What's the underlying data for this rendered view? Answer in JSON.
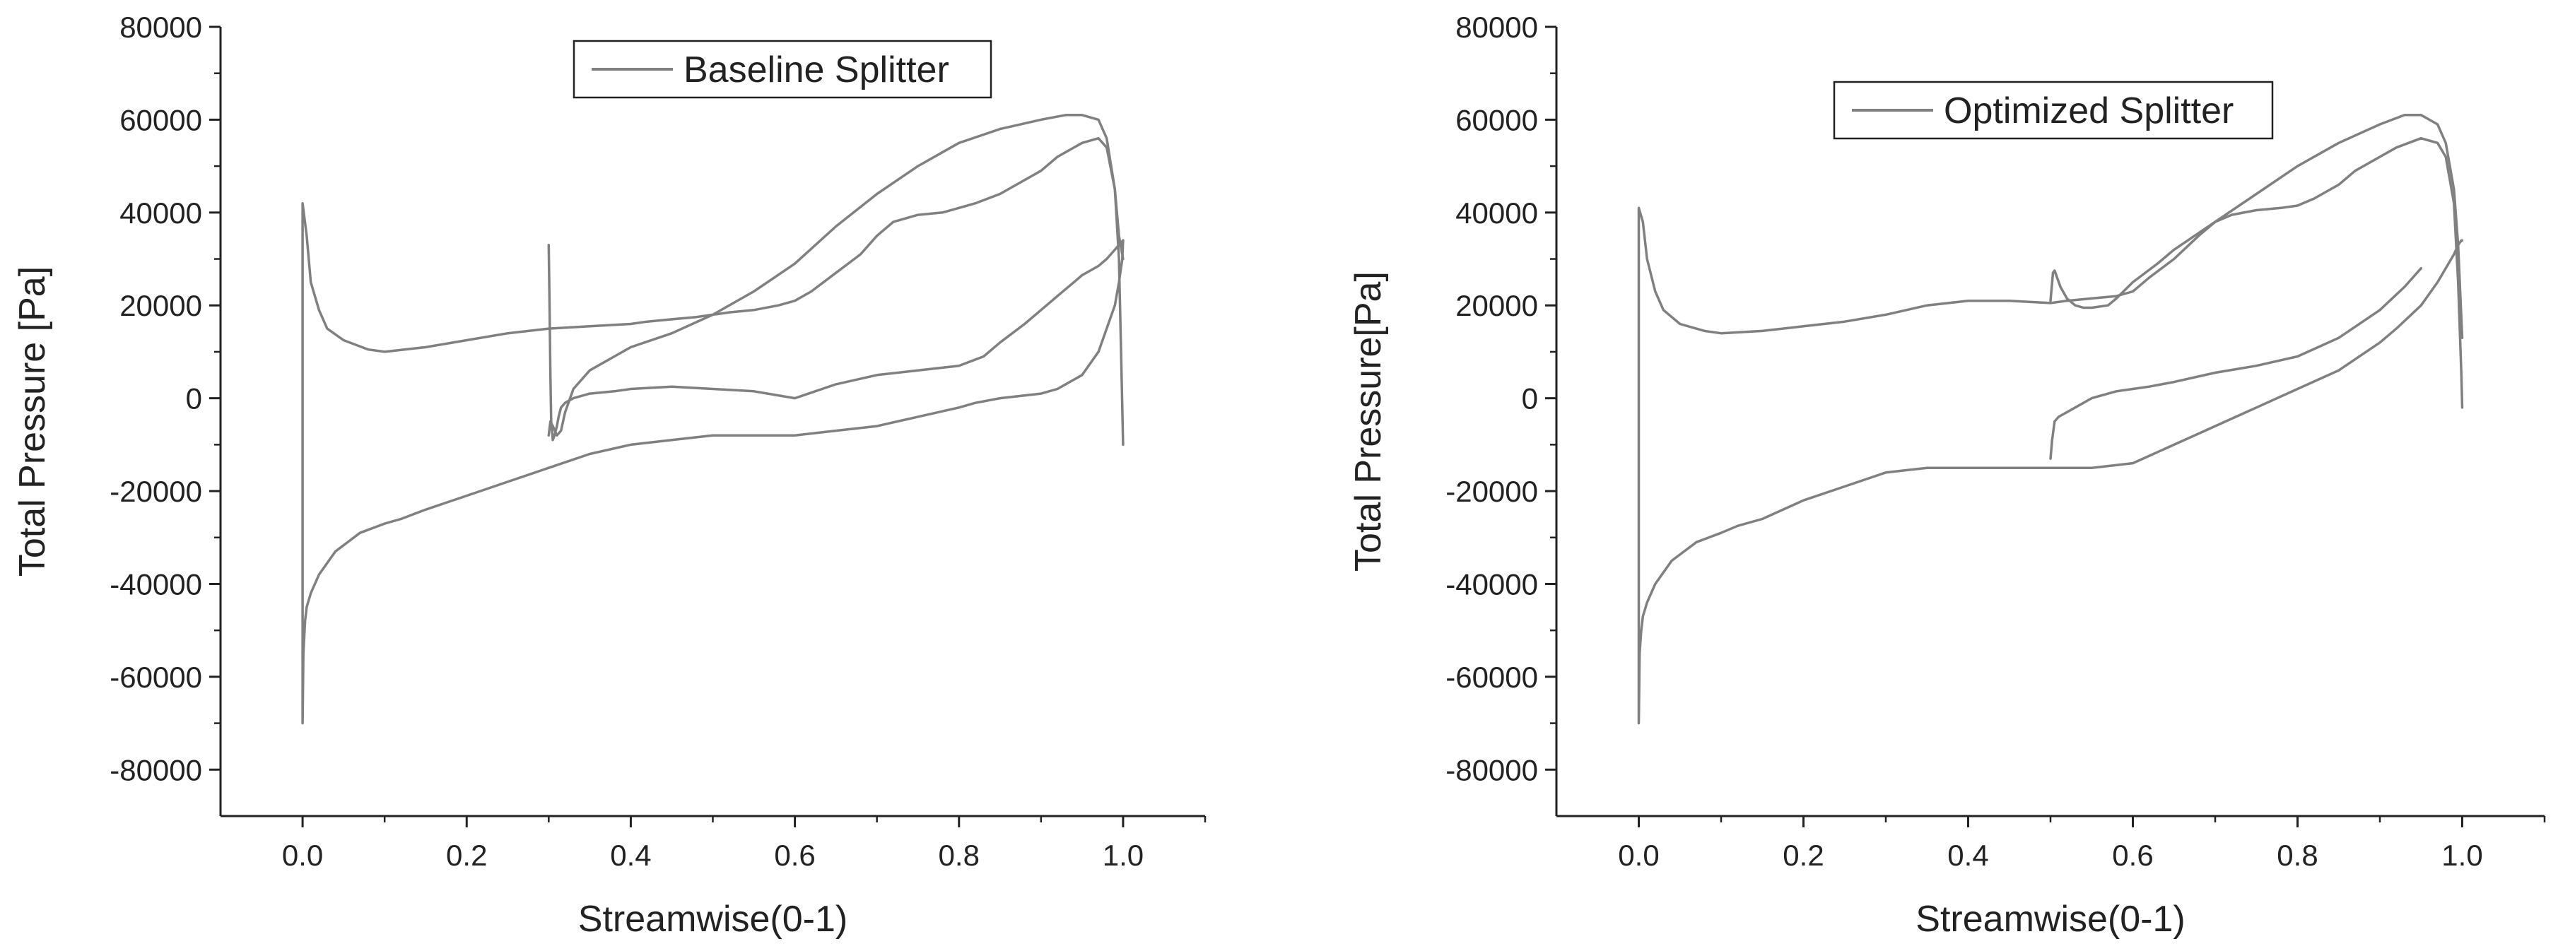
{
  "chart_data": [
    {
      "type": "line",
      "title": "",
      "xlabel": "Streamwise(0-1)",
      "ylabel": "Total Pressure [Pa]",
      "xlim": [
        -0.1,
        1.1
      ],
      "ylim": [
        -90000,
        80000
      ],
      "xticks": [
        0.0,
        0.2,
        0.4,
        0.6,
        0.8,
        1.0
      ],
      "xtick_labels": [
        "0.0",
        "0.2",
        "0.4",
        "0.6",
        "0.8",
        "1.0"
      ],
      "yticks": [
        -80000,
        -60000,
        -40000,
        -20000,
        0,
        20000,
        40000,
        60000,
        80000
      ],
      "ytick_labels": [
        "-80000",
        "-60000",
        "-40000",
        "-20000",
        "0",
        "20000",
        "40000",
        "60000",
        "80000"
      ],
      "grid": false,
      "legend_position": "top-center",
      "series_color": "#808080",
      "series": [
        {
          "name": "Baseline Splitter",
          "x": [
            1.0,
            0.999,
            0.995,
            0.99,
            0.98,
            0.97,
            0.95,
            0.92,
            0.9,
            0.87,
            0.85,
            0.82,
            0.8,
            0.78,
            0.75,
            0.72,
            0.7,
            0.68,
            0.65,
            0.62,
            0.6,
            0.58,
            0.55,
            0.52,
            0.5,
            0.48,
            0.45,
            0.42,
            0.4,
            0.35,
            0.3,
            0.25,
            0.2,
            0.15,
            0.1,
            0.08,
            0.05,
            0.03,
            0.02,
            0.01,
            0.005,
            0.0,
            0.0,
            0.001,
            0.003,
            0.005,
            0.01,
            0.02,
            0.04,
            0.07,
            0.1,
            0.12,
            0.15,
            0.2,
            0.25,
            0.3,
            0.35,
            0.4,
            0.45,
            0.5,
            0.55,
            0.6,
            0.65,
            0.7,
            0.75,
            0.8,
            0.82,
            0.85,
            0.9,
            0.92,
            0.95,
            0.97,
            0.98,
            0.99,
            0.995,
            0.999,
            1.0
          ],
          "y": [
            -10000,
            -2000,
            30000,
            45000,
            54000,
            56000,
            55000,
            52000,
            49000,
            46000,
            44000,
            42000,
            41000,
            40000,
            39500,
            38000,
            35000,
            31000,
            27000,
            23000,
            21000,
            20000,
            19000,
            18500,
            18000,
            17500,
            17000,
            16500,
            16000,
            15500,
            15000,
            14000,
            12500,
            11000,
            10000,
            10500,
            12500,
            15000,
            19000,
            25000,
            35000,
            42000,
            -70000,
            -55000,
            -48000,
            -45000,
            -42000,
            -38000,
            -33000,
            -29000,
            -27000,
            -26000,
            -24000,
            -21000,
            -18000,
            -15000,
            -12000,
            -10000,
            -9000,
            -8000,
            -8000,
            -8000,
            -7000,
            -6000,
            -4000,
            -2000,
            -1000,
            0,
            1000,
            2000,
            5000,
            10000,
            15000,
            20000,
            25000,
            30000,
            34000
          ]
        },
        {
          "name": "Baseline Splitter",
          "x": [
            0.3,
            0.301,
            0.302,
            0.303,
            0.305,
            0.307,
            0.31,
            0.312,
            0.315,
            0.32,
            0.33,
            0.35,
            0.38,
            0.4,
            0.45,
            0.5,
            0.55,
            0.6,
            0.65,
            0.7,
            0.75,
            0.8,
            0.83,
            0.85,
            0.88,
            0.9,
            0.92,
            0.94,
            0.95,
            0.96,
            0.97,
            0.98,
            0.985,
            0.99,
            0.995,
            1.0
          ],
          "y": [
            33000,
            20000,
            5000,
            -5000,
            -9000,
            -8000,
            -6000,
            -4000,
            -2000,
            -1000,
            0,
            1000,
            1500,
            2000,
            2500,
            2000,
            1500,
            0,
            3000,
            5000,
            6000,
            7000,
            9000,
            12000,
            16000,
            19000,
            22000,
            25000,
            26500,
            27500,
            28500,
            30000,
            31000,
            32000,
            33000,
            34000
          ]
        },
        {
          "name": "Baseline Splitter",
          "x": [
            0.3,
            0.302,
            0.305,
            0.31,
            0.315,
            0.32,
            0.33,
            0.35,
            0.38,
            0.4,
            0.45,
            0.5,
            0.55,
            0.6,
            0.65,
            0.7,
            0.75,
            0.8,
            0.85,
            0.9,
            0.93,
            0.95,
            0.97,
            0.98,
            0.99,
            0.995,
            1.0
          ],
          "y": [
            -8000,
            -5000,
            -6000,
            -8000,
            -7000,
            -3000,
            2000,
            6000,
            9000,
            11000,
            14000,
            18000,
            23000,
            29000,
            37000,
            44000,
            50000,
            55000,
            58000,
            60000,
            61000,
            61000,
            60000,
            56000,
            45000,
            35000,
            30000
          ]
        }
      ]
    },
    {
      "type": "line",
      "title": "",
      "xlabel": "Streamwise(0-1)",
      "ylabel": "Total Pressure[Pa]",
      "xlim": [
        -0.1,
        1.1
      ],
      "ylim": [
        -90000,
        80000
      ],
      "xticks": [
        0.0,
        0.2,
        0.4,
        0.6,
        0.8,
        1.0
      ],
      "xtick_labels": [
        "0.0",
        "0.2",
        "0.4",
        "0.6",
        "0.8",
        "1.0"
      ],
      "yticks": [
        -80000,
        -60000,
        -40000,
        -20000,
        0,
        20000,
        40000,
        60000,
        80000
      ],
      "ytick_labels": [
        "-80000",
        "-60000",
        "-40000",
        "-20000",
        "0",
        "20000",
        "40000",
        "60000",
        "80000"
      ],
      "grid": false,
      "legend_position": "top-center",
      "series_color": "#808080",
      "series": [
        {
          "name": "Optimized Splitter",
          "x": [
            1.0,
            0.999,
            0.995,
            0.99,
            0.98,
            0.97,
            0.95,
            0.92,
            0.9,
            0.87,
            0.85,
            0.82,
            0.8,
            0.78,
            0.75,
            0.72,
            0.7,
            0.68,
            0.65,
            0.62,
            0.6,
            0.58,
            0.55,
            0.52,
            0.5,
            0.45,
            0.4,
            0.35,
            0.3,
            0.25,
            0.2,
            0.15,
            0.1,
            0.08,
            0.05,
            0.03,
            0.02,
            0.01,
            0.005,
            0.0,
            0.0,
            0.001,
            0.003,
            0.005,
            0.01,
            0.02,
            0.04,
            0.07,
            0.1,
            0.12,
            0.15,
            0.2,
            0.25,
            0.3,
            0.35,
            0.4,
            0.45,
            0.5,
            0.55,
            0.6,
            0.65,
            0.7,
            0.75,
            0.8,
            0.85,
            0.9,
            0.92,
            0.95,
            0.97,
            0.98,
            0.99,
            0.995,
            0.999,
            1.0
          ],
          "y": [
            -2000,
            5000,
            25000,
            42000,
            52000,
            55000,
            56000,
            54000,
            52000,
            49000,
            46000,
            43000,
            41500,
            41000,
            40500,
            39500,
            38000,
            35000,
            30000,
            26000,
            23000,
            22000,
            21500,
            21000,
            20500,
            21000,
            21000,
            20000,
            18000,
            16500,
            15500,
            14500,
            14000,
            14500,
            16000,
            19000,
            23000,
            30000,
            38000,
            41000,
            -70000,
            -55000,
            -50000,
            -47000,
            -44000,
            -40000,
            -35000,
            -31000,
            -29000,
            -27500,
            -26000,
            -22000,
            -19000,
            -16000,
            -15000,
            -15000,
            -15000,
            -15000,
            -15000,
            -14000,
            -10000,
            -6000,
            -2000,
            2000,
            6000,
            12000,
            15000,
            20000,
            25000,
            28000,
            31000,
            33000,
            34000,
            34000
          ]
        },
        {
          "name": "Optimized Splitter",
          "x": [
            0.5,
            0.502,
            0.505,
            0.51,
            0.52,
            0.53,
            0.55,
            0.58,
            0.6,
            0.62,
            0.65,
            0.7,
            0.75,
            0.8,
            0.85,
            0.9,
            0.93,
            0.95
          ],
          "y": [
            -13000,
            -9000,
            -5000,
            -4000,
            -3000,
            -2000,
            0,
            1500,
            2000,
            2500,
            3500,
            5500,
            7000,
            9000,
            13000,
            19000,
            24000,
            28000
          ]
        },
        {
          "name": "Optimized Splitter",
          "x": [
            0.5,
            0.503,
            0.505,
            0.508,
            0.512,
            0.52,
            0.53,
            0.54,
            0.55,
            0.57,
            0.58,
            0.6,
            0.63,
            0.65,
            0.7,
            0.75,
            0.8,
            0.85,
            0.9,
            0.93,
            0.95,
            0.97,
            0.98,
            0.99,
            0.995,
            1.0
          ],
          "y": [
            21000,
            27000,
            27500,
            26000,
            24000,
            21500,
            20000,
            19500,
            19500,
            20000,
            21500,
            25000,
            29000,
            32000,
            38000,
            44000,
            50000,
            55000,
            59000,
            61000,
            61000,
            59000,
            55000,
            45000,
            33000,
            13000
          ]
        }
      ]
    }
  ]
}
